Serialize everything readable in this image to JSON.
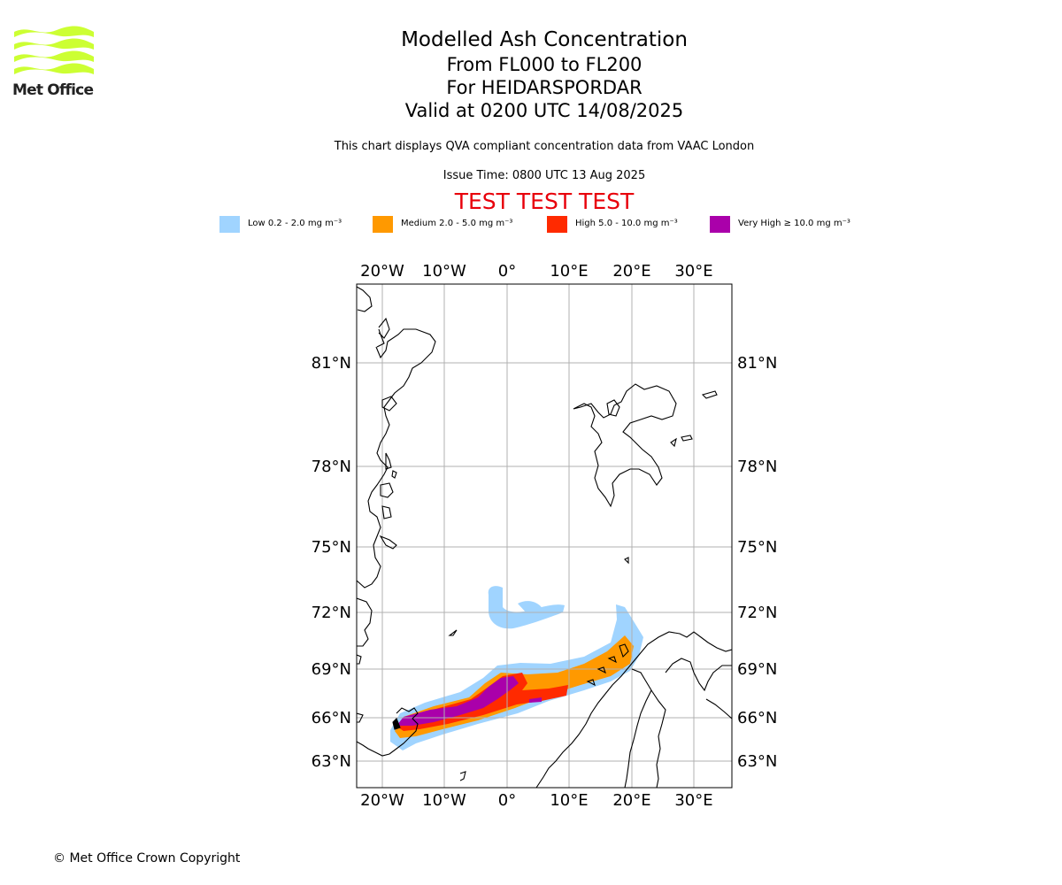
{
  "header": {
    "logo_text": "Met Office",
    "title": "Modelled Ash Concentration",
    "flight_levels": "From FL000 to FL200",
    "volcano": "For HEIDARSPORDAR",
    "valid_time": "Valid at 0200 UTC 14/08/2025",
    "description": "This chart displays QVA compliant concentration data from VAAC London",
    "issue_time": "Issue Time: 0800 UTC 13 Aug 2025",
    "test_banner": "TEST TEST TEST"
  },
  "legend": [
    {
      "label": "Low 0.2 - 2.0 mg m⁻³",
      "color": "#a0d4ff"
    },
    {
      "label": "Medium 2.0 - 5.0 mg m⁻³",
      "color": "#ff9900"
    },
    {
      "label": "High 5.0 - 10.0 mg m⁻³",
      "color": "#ff2a00"
    },
    {
      "label": "Very High  ≥  10.0 mg m⁻³",
      "color": "#aa00aa"
    }
  ],
  "map": {
    "lon_labels": [
      "20°W",
      "10°W",
      "0°",
      "10°E",
      "20°E",
      "30°E"
    ],
    "lat_labels": [
      "81°N",
      "78°N",
      "75°N",
      "72°N",
      "69°N",
      "66°N",
      "63°N"
    ],
    "colors": {
      "low": "#a0d4ff",
      "medium": "#ff9900",
      "high": "#ff2a00",
      "very_high": "#aa00aa"
    }
  },
  "footer": {
    "copyright": "© Met Office Crown Copyright"
  }
}
